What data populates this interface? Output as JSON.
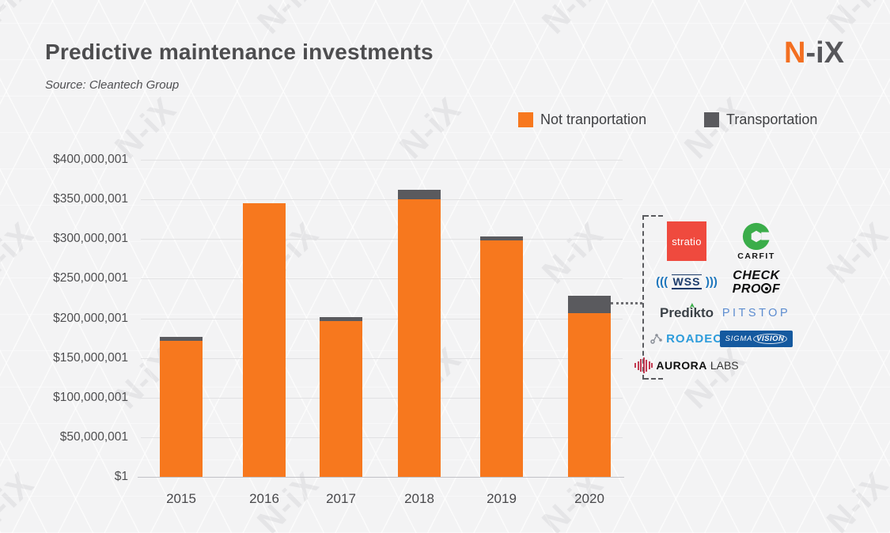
{
  "header": {
    "title": "Predictive maintenance investments",
    "source": "Source: Cleantech Group"
  },
  "brand": {
    "n": "N",
    "ix": "-iX"
  },
  "watermark": "N-iX",
  "legend": [
    {
      "label": "Not tranportation",
      "color": "#f7781e"
    },
    {
      "label": "Transportation",
      "color": "#5a5a5e"
    }
  ],
  "chart_data": {
    "type": "bar",
    "stacked": true,
    "title": "Predictive maintenance investments",
    "unit": "USD",
    "categories": [
      "2015",
      "2016",
      "2017",
      "2018",
      "2019",
      "2020"
    ],
    "series": [
      {
        "name": "Not tranportation",
        "color": "#f7781e",
        "values_millions": [
          172,
          345,
          197,
          350,
          298,
          206
        ]
      },
      {
        "name": "Transportation",
        "color": "#5a5a5e",
        "values_millions": [
          5,
          0,
          5,
          12,
          5,
          22
        ]
      }
    ],
    "y_ticks": [
      "$400,000,001",
      "$350,000,001",
      "$300,000,001",
      "$250,000,001",
      "$200,000,001",
      "$150,000,001",
      "$100,000,001",
      "$50,000,001",
      "$1"
    ],
    "ylim_millions": [
      0,
      400
    ],
    "grid": true,
    "legend_position": "top-right"
  },
  "logo_panel": {
    "logos": {
      "stratio": {
        "text": "stratio",
        "bg_color": "#ef4a3e"
      },
      "carfit": {
        "text": "CARFIT",
        "icon_color": "#3bad4a"
      },
      "wss": {
        "left": "(((",
        "text": "WSS",
        "right": ")))"
      },
      "checkproof": {
        "line1": "CHECK",
        "line2_start": "PRO",
        "line2_end": "F"
      },
      "predikto": {
        "text": "Predikto",
        "accent_color": "#3bad4a"
      },
      "pitstop": {
        "text": "PITSTOP",
        "color": "#5c8cd0"
      },
      "roadeo": {
        "text": "ROADEO",
        "color": "#2d9cdb"
      },
      "sigmavision": {
        "part1": "SIGMA",
        "part2": "VISION",
        "bg_color": "#15599f"
      },
      "auroralabs": {
        "part1": "AURORA",
        "part2": "LABS"
      }
    }
  }
}
